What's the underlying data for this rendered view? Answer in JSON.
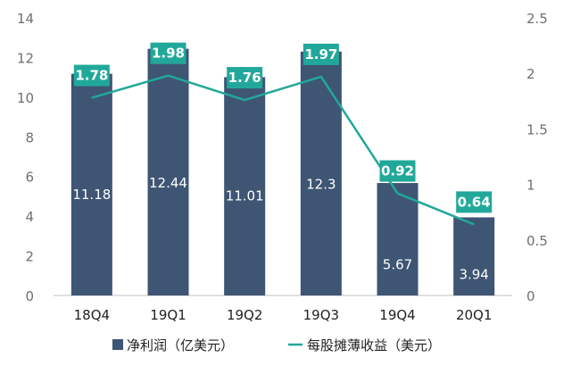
{
  "chart_data": {
    "type": "bar",
    "categories": [
      "18Q4",
      "19Q1",
      "19Q2",
      "19Q3",
      "19Q4",
      "20Q1"
    ],
    "series": [
      {
        "name": "净利润（亿美元）",
        "type": "bar",
        "axis": "left",
        "values": [
          11.18,
          12.44,
          11.01,
          12.3,
          5.67,
          3.94
        ],
        "color": "#3e5573"
      },
      {
        "name": "每股摊薄收益（美元）",
        "type": "line",
        "axis": "right",
        "values": [
          1.78,
          1.98,
          1.76,
          1.97,
          0.92,
          0.64
        ],
        "color": "#21a89a"
      }
    ],
    "bar_labels": [
      "11.18",
      "12.44",
      "11.01",
      "12.3",
      "5.67",
      "3.94"
    ],
    "line_labels": [
      "1.78",
      "1.98",
      "1.76",
      "1.97",
      "0.92",
      "0.64"
    ],
    "ylim_left": [
      0,
      14
    ],
    "yticks_left": [
      "0",
      "2",
      "4",
      "6",
      "8",
      "10",
      "12",
      "14"
    ],
    "ylim_right": [
      0,
      2.5
    ],
    "yticks_right": [
      "0",
      "0.5",
      "1",
      "1.5",
      "2",
      "2.5"
    ],
    "grid": false,
    "legend_position": "bottom",
    "title": "",
    "xlabel": "",
    "ylabel": ""
  }
}
